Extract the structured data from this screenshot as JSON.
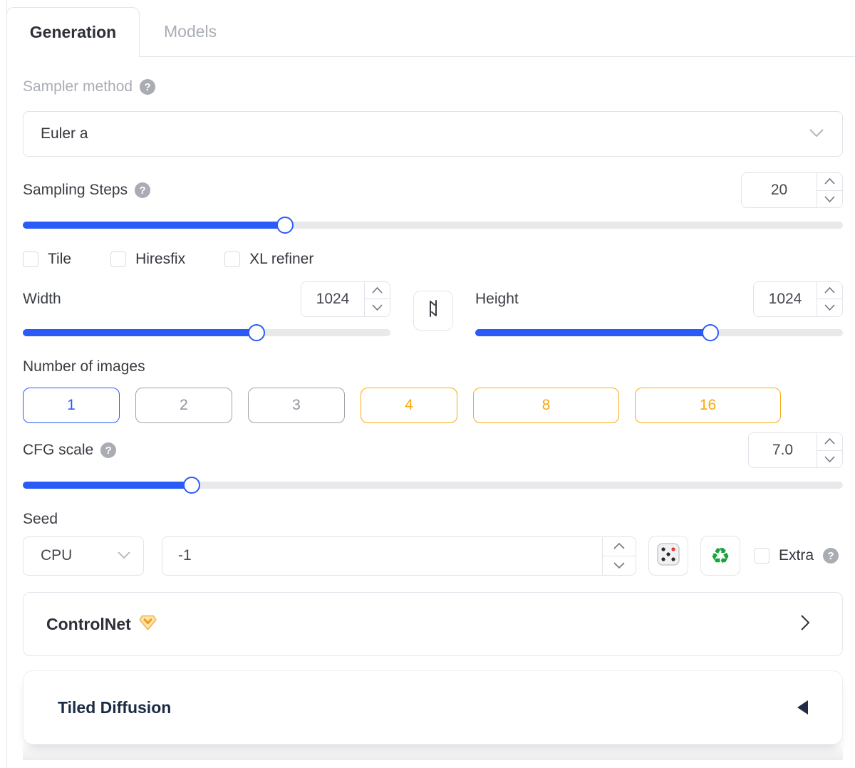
{
  "tabs": {
    "generation": "Generation",
    "models": "Models"
  },
  "icons": {
    "help": "?",
    "recycle": "♻"
  },
  "sampler": {
    "label": "Sampler method",
    "value": "Euler a"
  },
  "sampling_steps": {
    "label": "Sampling Steps",
    "value": "20",
    "percent": 32
  },
  "checkboxes": [
    {
      "label": "Tile",
      "checked": false
    },
    {
      "label": "Hiresfix",
      "checked": false
    },
    {
      "label": "XL refiner",
      "checked": false
    }
  ],
  "width": {
    "label": "Width",
    "value": "1024",
    "percent": 63.5
  },
  "height": {
    "label": "Height",
    "value": "1024",
    "percent": 64
  },
  "num_images": {
    "label": "Number of images",
    "options": [
      {
        "label": "1",
        "state": "selected",
        "wide": false
      },
      {
        "label": "2",
        "state": "default",
        "wide": false
      },
      {
        "label": "3",
        "state": "default",
        "wide": false
      },
      {
        "label": "4",
        "state": "accent",
        "wide": false
      },
      {
        "label": "8",
        "state": "accent",
        "wide": true
      },
      {
        "label": "16",
        "state": "accent",
        "wide": true
      }
    ]
  },
  "cfg": {
    "label": "CFG scale",
    "value": "7.0",
    "percent": 20.6
  },
  "seed": {
    "label": "Seed",
    "device": "CPU",
    "value": "-1",
    "extra_label": "Extra"
  },
  "panels": {
    "controlnet": {
      "title": "ControlNet"
    },
    "tiled": {
      "title": "Tiled Diffusion"
    }
  },
  "colors": {
    "accent_blue": "#2b5bf6",
    "accent_orange": "#f9ab14",
    "border_gray": "#e0e3e9",
    "text_dark": "#33363c",
    "text_gray": "#a9adb5",
    "recycle_green": "#17a53a",
    "panel2_text": "#1c2b45"
  }
}
